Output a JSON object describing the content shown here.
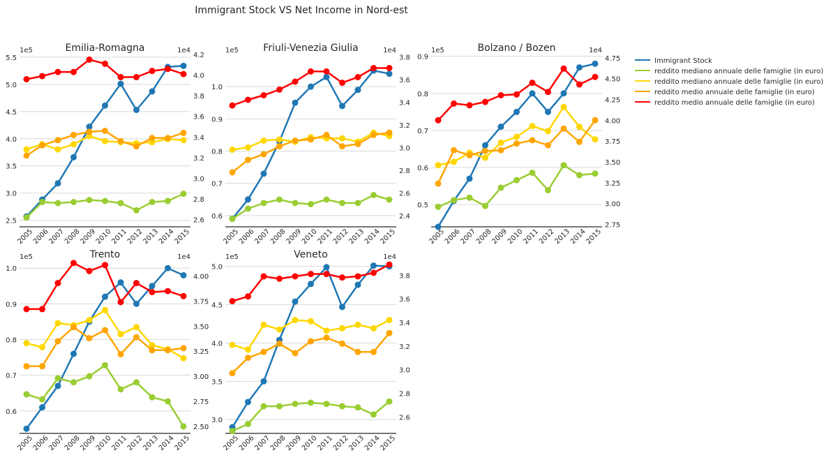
{
  "figure": {
    "title": "Immigrant Stock VS Net Income in Nord-est"
  },
  "legend": {
    "placement": "outside-right",
    "entries": [
      {
        "label": "Immigrant Stock",
        "color": "#1f77b4"
      },
      {
        "label": "reddito mediano annuale delle famiglie (in euro)",
        "color": "#9acd32"
      },
      {
        "label": "reddito mediano annuale delle famiglie (in euro)",
        "color": "#ffd700"
      },
      {
        "label": "reddito medio annuale delle famiglie (in euro)",
        "color": "#ffa500"
      },
      {
        "label": "reddito medio annuale delle famiglie (in euro)",
        "color": "#ff0000"
      }
    ]
  },
  "chart_data": [
    {
      "type": "line",
      "title": "Emilia-Romagna",
      "x": [
        "2005",
        "2006",
        "2007",
        "2008",
        "2009",
        "2010",
        "2011",
        "2012",
        "2013",
        "2014",
        "2015"
      ],
      "left_axis": {
        "multiplier": "1e5",
        "ylim": [
          2.38,
          5.55
        ],
        "ticks": [
          "2.5",
          "3.0",
          "3.5",
          "4.0",
          "4.5",
          "5.0",
          "5.5"
        ]
      },
      "right_axis": {
        "multiplier": "1e4",
        "ylim": [
          2.53,
          4.2
        ],
        "ticks": [
          "2.6",
          "2.8",
          "3.0",
          "3.2",
          "3.4",
          "3.6",
          "3.8",
          "4.0",
          "4.2"
        ]
      },
      "grid": "horizontal",
      "series": [
        {
          "name": "Immigrant Stock",
          "axis": "left",
          "color": "#1f77b4",
          "values": [
            2.57,
            2.88,
            3.18,
            3.66,
            4.22,
            4.61,
            5.01,
            4.53,
            4.87,
            5.32,
            5.34
          ]
        },
        {
          "name": "reddito mediano annuale delle famiglie (in euro)",
          "axis": "right",
          "color": "#9acd32",
          "values": [
            2.62,
            2.77,
            2.76,
            2.77,
            2.79,
            2.78,
            2.76,
            2.69,
            2.77,
            2.78,
            2.85
          ]
        },
        {
          "name": "reddito mediano annuale delle famiglie (in euro)",
          "axis": "right",
          "color": "#ffd700",
          "values": [
            3.28,
            3.33,
            3.28,
            3.33,
            3.41,
            3.36,
            3.35,
            3.34,
            3.35,
            3.38,
            3.37
          ]
        },
        {
          "name": "reddito medio annuale delle famiglie (in euro)",
          "axis": "right",
          "color": "#ffa500",
          "values": [
            3.22,
            3.32,
            3.37,
            3.42,
            3.45,
            3.46,
            3.36,
            3.31,
            3.39,
            3.39,
            3.44
          ]
        },
        {
          "name": "reddito medio annuale delle famiglie (in euro)",
          "axis": "right",
          "color": "#ff0000",
          "values": [
            3.96,
            3.99,
            4.03,
            4.03,
            4.15,
            4.11,
            3.98,
            3.98,
            4.04,
            4.06,
            4.01
          ]
        }
      ]
    },
    {
      "type": "line",
      "title": "Friuli-Venezia Giulia",
      "x": [
        "2005",
        "2006",
        "2007",
        "2008",
        "2009",
        "2010",
        "2011",
        "2012",
        "2013",
        "2014",
        "2015"
      ],
      "left_axis": {
        "multiplier": "1e5",
        "ylim": [
          0.565,
          1.1
        ],
        "ticks": [
          "0.6",
          "0.7",
          "0.8",
          "0.9",
          "1.0"
        ]
      },
      "right_axis": {
        "multiplier": "1e4",
        "ylim": [
          2.3,
          3.82
        ],
        "ticks": [
          "2.4",
          "2.6",
          "2.8",
          "3.0",
          "3.2",
          "3.4",
          "3.6",
          "3.8"
        ]
      },
      "grid": "horizontal",
      "series": [
        {
          "name": "Immigrant Stock",
          "axis": "left",
          "color": "#1f77b4",
          "values": [
            0.59,
            0.65,
            0.73,
            0.83,
            0.95,
            1.0,
            1.03,
            0.94,
            0.99,
            1.05,
            1.04
          ]
        },
        {
          "name": "reddito mediano annuale delle famiglie (in euro)",
          "axis": "right",
          "color": "#9acd32",
          "values": [
            2.37,
            2.46,
            2.51,
            2.54,
            2.51,
            2.5,
            2.54,
            2.51,
            2.51,
            2.58,
            2.54
          ]
        },
        {
          "name": "reddito mediano annuale delle famiglie (in euro)",
          "axis": "right",
          "color": "#ffd700",
          "values": [
            2.98,
            3.0,
            3.06,
            3.07,
            3.05,
            3.09,
            3.08,
            3.08,
            3.05,
            3.13,
            3.1
          ]
        },
        {
          "name": "reddito medio annuale delle famiglie (in euro)",
          "axis": "right",
          "color": "#ffa500",
          "values": [
            2.78,
            2.89,
            2.94,
            3.01,
            3.06,
            3.07,
            3.11,
            3.01,
            3.03,
            3.11,
            3.13
          ]
        },
        {
          "name": "reddito medio annuale delle famiglie (in euro)",
          "axis": "right",
          "color": "#ff0000",
          "values": [
            3.37,
            3.42,
            3.46,
            3.51,
            3.58,
            3.67,
            3.67,
            3.57,
            3.62,
            3.7,
            3.7
          ]
        }
      ]
    },
    {
      "type": "line",
      "title": "Bolzano / Bozen",
      "x": [
        "2005",
        "2006",
        "2007",
        "2008",
        "2009",
        "2010",
        "2011",
        "2012",
        "2013",
        "2014",
        "2015"
      ],
      "left_axis": {
        "multiplier": "1e5",
        "ylim": [
          0.44,
          0.905
        ],
        "ticks": [
          "0.5",
          "0.6",
          "0.7",
          "0.8",
          "0.9"
        ]
      },
      "right_axis": {
        "multiplier": "1e4",
        "ylim": [
          2.72,
          4.79
        ],
        "ticks": [
          "2.75",
          "3.00",
          "3.25",
          "3.50",
          "3.75",
          "4.00",
          "4.25",
          "4.50",
          "4.75"
        ]
      },
      "grid": "horizontal",
      "series": [
        {
          "name": "Immigrant Stock",
          "axis": "left",
          "color": "#1f77b4",
          "values": [
            0.44,
            0.51,
            0.57,
            0.66,
            0.71,
            0.75,
            0.8,
            0.75,
            0.8,
            0.87,
            0.88
          ]
        },
        {
          "name": "reddito mediano annuale delle famiglie (in euro)",
          "axis": "right",
          "color": "#9acd32",
          "values": [
            2.96,
            3.04,
            3.07,
            2.97,
            3.19,
            3.28,
            3.37,
            3.16,
            3.46,
            3.34,
            3.36
          ]
        },
        {
          "name": "reddito mediano annuale delle famiglie (in euro)",
          "axis": "right",
          "color": "#ffd700",
          "values": [
            3.46,
            3.5,
            3.61,
            3.55,
            3.73,
            3.8,
            3.93,
            3.87,
            4.16,
            3.92,
            3.77
          ]
        },
        {
          "name": "reddito medio annuale delle famiglie (in euro)",
          "axis": "right",
          "color": "#ffa500",
          "values": [
            3.24,
            3.64,
            3.58,
            3.63,
            3.64,
            3.72,
            3.76,
            3.7,
            3.9,
            3.74,
            4.0
          ]
        },
        {
          "name": "reddito medio annuale delle famiglie (in euro)",
          "axis": "right",
          "color": "#ff0000",
          "values": [
            4.0,
            4.2,
            4.18,
            4.22,
            4.3,
            4.31,
            4.45,
            4.34,
            4.62,
            4.43,
            4.52
          ]
        }
      ]
    },
    {
      "type": "line",
      "title": "Trento",
      "x": [
        "2005",
        "2006",
        "2007",
        "2008",
        "2009",
        "2010",
        "2011",
        "2012",
        "2013",
        "2014",
        "2015"
      ],
      "left_axis": {
        "multiplier": "1e5",
        "ylim": [
          0.537,
          1.02
        ],
        "ticks": [
          "0.6",
          "0.7",
          "0.8",
          "0.9",
          "1.0"
        ]
      },
      "right_axis": {
        "multiplier": "1e4",
        "ylim": [
          2.43,
          4.15
        ],
        "ticks": [
          "2.50",
          "2.75",
          "3.00",
          "3.25",
          "3.50",
          "3.75",
          "4.00"
        ]
      },
      "grid": "horizontal",
      "series": [
        {
          "name": "Immigrant Stock",
          "axis": "left",
          "color": "#1f77b4",
          "values": [
            0.55,
            0.61,
            0.67,
            0.76,
            0.85,
            0.92,
            0.96,
            0.9,
            0.95,
            1.0,
            0.98
          ]
        },
        {
          "name": "reddito mediano annuale delle famiglie (in euro)",
          "axis": "right",
          "color": "#9acd32",
          "values": [
            2.82,
            2.77,
            2.98,
            2.94,
            3.0,
            3.11,
            2.87,
            2.94,
            2.79,
            2.75,
            2.5
          ]
        },
        {
          "name": "reddito mediano annuale delle famiglie (in euro)",
          "axis": "right",
          "color": "#ffd700",
          "values": [
            3.33,
            3.29,
            3.53,
            3.51,
            3.56,
            3.66,
            3.42,
            3.49,
            3.31,
            3.27,
            3.18
          ]
        },
        {
          "name": "reddito medio annuale delle famiglie (in euro)",
          "axis": "right",
          "color": "#ffa500",
          "values": [
            3.1,
            3.1,
            3.35,
            3.49,
            3.38,
            3.46,
            3.22,
            3.39,
            3.26,
            3.26,
            3.28
          ]
        },
        {
          "name": "reddito medio annuale delle famiglie (in euro)",
          "axis": "right",
          "color": "#ff0000",
          "values": [
            3.67,
            3.67,
            3.93,
            4.13,
            4.05,
            4.11,
            3.74,
            3.93,
            3.84,
            3.85,
            3.8
          ]
        }
      ]
    },
    {
      "type": "line",
      "title": "Veneto",
      "x": [
        "2005",
        "2006",
        "2007",
        "2008",
        "2009",
        "2010",
        "2011",
        "2012",
        "2013",
        "2014",
        "2015"
      ],
      "left_axis": {
        "multiplier": "1e5",
        "ylim": [
          2.82,
          5.07
        ],
        "ticks": [
          "3.0",
          "3.5",
          "4.0",
          "4.5",
          "5.0"
        ]
      },
      "right_axis": {
        "multiplier": "1e4",
        "ylim": [
          2.46,
          3.92
        ],
        "ticks": [
          "2.6",
          "2.8",
          "3.0",
          "3.2",
          "3.4",
          "3.6",
          "3.8"
        ]
      },
      "grid": "horizontal",
      "series": [
        {
          "name": "Immigrant Stock",
          "axis": "left",
          "color": "#1f77b4",
          "values": [
            2.9,
            3.23,
            3.5,
            4.04,
            4.54,
            4.77,
            4.99,
            4.47,
            4.76,
            5.01,
            5.0
          ]
        },
        {
          "name": "reddito mediano annuale delle famiglie (in euro)",
          "axis": "right",
          "color": "#9acd32",
          "values": [
            2.48,
            2.54,
            2.69,
            2.69,
            2.71,
            2.72,
            2.71,
            2.69,
            2.68,
            2.62,
            2.73
          ]
        },
        {
          "name": "reddito mediano annuale delle famiglie (in euro)",
          "axis": "right",
          "color": "#ffd700",
          "values": [
            3.21,
            3.17,
            3.38,
            3.34,
            3.42,
            3.41,
            3.33,
            3.35,
            3.38,
            3.35,
            3.42
          ]
        },
        {
          "name": "reddito medio annuale delle famiglie (in euro)",
          "axis": "right",
          "color": "#ffa500",
          "values": [
            2.97,
            3.1,
            3.15,
            3.22,
            3.14,
            3.24,
            3.27,
            3.22,
            3.15,
            3.15,
            3.31
          ]
        },
        {
          "name": "reddito medio annuale delle famiglie (in euro)",
          "axis": "right",
          "color": "#ff0000",
          "values": [
            3.58,
            3.62,
            3.79,
            3.77,
            3.79,
            3.81,
            3.81,
            3.78,
            3.79,
            3.82,
            3.89
          ]
        }
      ]
    }
  ]
}
